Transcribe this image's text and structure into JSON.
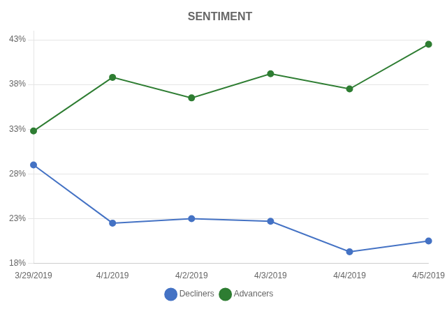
{
  "chart_data": {
    "type": "line",
    "title": "SENTIMENT",
    "categories": [
      "3/29/2019",
      "4/1/2019",
      "4/2/2019",
      "4/3/2019",
      "4/4/2019",
      "4/5/2019"
    ],
    "series": [
      {
        "name": "Decliners",
        "color": "#4472c4",
        "values": [
          29.0,
          22.5,
          23.0,
          22.7,
          19.3,
          20.5
        ]
      },
      {
        "name": "Advancers",
        "color": "#2e7d32",
        "values": [
          32.8,
          38.8,
          36.5,
          39.2,
          37.5,
          42.5
        ]
      }
    ],
    "ylim": [
      18,
      44
    ],
    "yticks": [
      {
        "value": 18,
        "label": "18%"
      },
      {
        "value": 23,
        "label": "23%"
      },
      {
        "value": 28,
        "label": "28%"
      },
      {
        "value": 33,
        "label": "33%"
      },
      {
        "value": 38,
        "label": "38%"
      },
      {
        "value": 43,
        "label": "43%"
      }
    ],
    "grid": true,
    "legend": "bottom",
    "marker": "circle"
  }
}
